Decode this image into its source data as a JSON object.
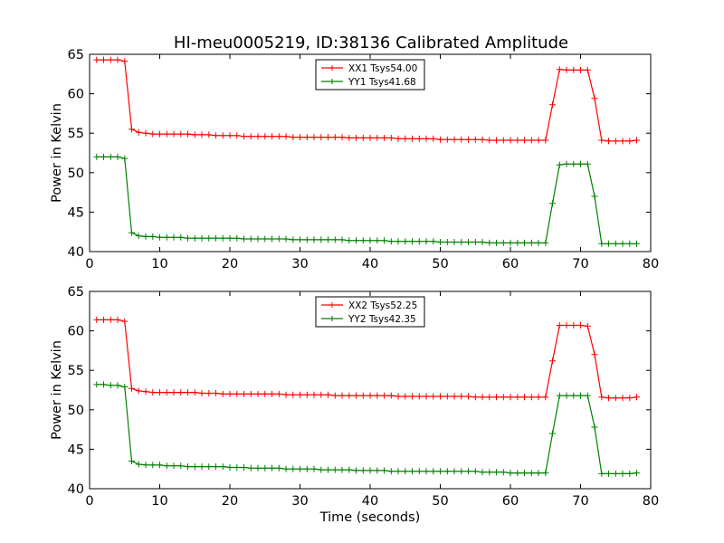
{
  "title": "HI-meu0005219, ID:38136 Calibrated Amplitude",
  "chart_data": [
    {
      "type": "line",
      "ylabel": "Power in Kelvin",
      "xlabel": "",
      "xlim": [
        0,
        80
      ],
      "ylim": [
        40,
        65
      ],
      "xticks": [
        0,
        10,
        20,
        30,
        40,
        50,
        60,
        70,
        80
      ],
      "yticks": [
        40,
        45,
        50,
        55,
        60,
        65
      ],
      "legend_position": "top-center",
      "series": [
        {
          "name": "XX1 Tsys54.00",
          "color": "#ff0000",
          "x": [
            1,
            2,
            3,
            4,
            5,
            6,
            7,
            8,
            9,
            10,
            11,
            12,
            13,
            14,
            15,
            16,
            17,
            18,
            19,
            20,
            21,
            22,
            23,
            24,
            25,
            26,
            27,
            28,
            29,
            30,
            31,
            32,
            33,
            34,
            35,
            36,
            37,
            38,
            39,
            40,
            41,
            42,
            43,
            44,
            45,
            46,
            47,
            48,
            49,
            50,
            51,
            52,
            53,
            54,
            55,
            56,
            57,
            58,
            59,
            60,
            61,
            62,
            63,
            64,
            65,
            66,
            67,
            68,
            69,
            70,
            71,
            72,
            73,
            74,
            75,
            76,
            77,
            78
          ],
          "y": [
            64.3,
            64.3,
            64.3,
            64.3,
            64.1,
            55.5,
            55.1,
            55.0,
            54.9,
            54.9,
            54.9,
            54.9,
            54.9,
            54.9,
            54.8,
            54.8,
            54.8,
            54.7,
            54.7,
            54.7,
            54.7,
            54.6,
            54.6,
            54.6,
            54.6,
            54.6,
            54.6,
            54.6,
            54.5,
            54.5,
            54.5,
            54.5,
            54.5,
            54.5,
            54.5,
            54.5,
            54.4,
            54.4,
            54.4,
            54.4,
            54.4,
            54.4,
            54.4,
            54.3,
            54.3,
            54.3,
            54.3,
            54.3,
            54.3,
            54.2,
            54.2,
            54.2,
            54.2,
            54.2,
            54.2,
            54.2,
            54.1,
            54.1,
            54.1,
            54.1,
            54.1,
            54.1,
            54.1,
            54.1,
            54.1,
            58.6,
            63.1,
            63.0,
            63.0,
            63.0,
            63.0,
            59.4,
            54.1,
            54.0,
            54.0,
            54.0,
            54.0,
            54.1
          ]
        },
        {
          "name": "YY1 Tsys41.68",
          "color": "#008000",
          "x": [
            1,
            2,
            3,
            4,
            5,
            6,
            7,
            8,
            9,
            10,
            11,
            12,
            13,
            14,
            15,
            16,
            17,
            18,
            19,
            20,
            21,
            22,
            23,
            24,
            25,
            26,
            27,
            28,
            29,
            30,
            31,
            32,
            33,
            34,
            35,
            36,
            37,
            38,
            39,
            40,
            41,
            42,
            43,
            44,
            45,
            46,
            47,
            48,
            49,
            50,
            51,
            52,
            53,
            54,
            55,
            56,
            57,
            58,
            59,
            60,
            61,
            62,
            63,
            64,
            65,
            66,
            67,
            68,
            69,
            70,
            71,
            72,
            73,
            74,
            75,
            76,
            77,
            78
          ],
          "y": [
            52.0,
            52.0,
            52.0,
            52.0,
            51.8,
            42.4,
            42.0,
            41.9,
            41.9,
            41.8,
            41.8,
            41.8,
            41.8,
            41.7,
            41.7,
            41.7,
            41.7,
            41.7,
            41.7,
            41.7,
            41.7,
            41.6,
            41.6,
            41.6,
            41.6,
            41.6,
            41.6,
            41.6,
            41.5,
            41.5,
            41.5,
            41.5,
            41.5,
            41.5,
            41.5,
            41.5,
            41.4,
            41.4,
            41.4,
            41.4,
            41.4,
            41.4,
            41.3,
            41.3,
            41.3,
            41.3,
            41.3,
            41.3,
            41.3,
            41.2,
            41.2,
            41.2,
            41.2,
            41.2,
            41.2,
            41.2,
            41.1,
            41.1,
            41.1,
            41.1,
            41.1,
            41.1,
            41.1,
            41.1,
            41.1,
            46.1,
            51.0,
            51.1,
            51.1,
            51.1,
            51.1,
            47.0,
            41.0,
            41.0,
            41.0,
            41.0,
            41.0,
            41.0
          ]
        }
      ]
    },
    {
      "type": "line",
      "ylabel": "Power in Kelvin",
      "xlabel": "Time (seconds)",
      "xlim": [
        0,
        80
      ],
      "ylim": [
        40,
        65
      ],
      "xticks": [
        0,
        10,
        20,
        30,
        40,
        50,
        60,
        70,
        80
      ],
      "yticks": [
        40,
        45,
        50,
        55,
        60,
        65
      ],
      "legend_position": "top-center",
      "series": [
        {
          "name": "XX2 Tsys52.25",
          "color": "#ff0000",
          "x": [
            1,
            2,
            3,
            4,
            5,
            6,
            7,
            8,
            9,
            10,
            11,
            12,
            13,
            14,
            15,
            16,
            17,
            18,
            19,
            20,
            21,
            22,
            23,
            24,
            25,
            26,
            27,
            28,
            29,
            30,
            31,
            32,
            33,
            34,
            35,
            36,
            37,
            38,
            39,
            40,
            41,
            42,
            43,
            44,
            45,
            46,
            47,
            48,
            49,
            50,
            51,
            52,
            53,
            54,
            55,
            56,
            57,
            58,
            59,
            60,
            61,
            62,
            63,
            64,
            65,
            66,
            67,
            68,
            69,
            70,
            71,
            72,
            73,
            74,
            75,
            76,
            77,
            78
          ],
          "y": [
            61.4,
            61.4,
            61.4,
            61.4,
            61.2,
            52.7,
            52.4,
            52.3,
            52.2,
            52.2,
            52.2,
            52.2,
            52.2,
            52.2,
            52.2,
            52.1,
            52.1,
            52.1,
            52.0,
            52.0,
            52.0,
            52.0,
            52.0,
            52.0,
            52.0,
            52.0,
            52.0,
            51.9,
            51.9,
            51.9,
            51.9,
            51.9,
            51.9,
            51.9,
            51.8,
            51.8,
            51.8,
            51.8,
            51.8,
            51.8,
            51.8,
            51.8,
            51.8,
            51.7,
            51.7,
            51.7,
            51.7,
            51.7,
            51.7,
            51.7,
            51.7,
            51.7,
            51.7,
            51.7,
            51.6,
            51.6,
            51.6,
            51.6,
            51.6,
            51.6,
            51.6,
            51.6,
            51.6,
            51.6,
            51.6,
            56.2,
            60.7,
            60.7,
            60.7,
            60.7,
            60.6,
            57.0,
            51.6,
            51.5,
            51.5,
            51.5,
            51.5,
            51.6
          ]
        },
        {
          "name": "YY2 Tsys42.35",
          "color": "#008000",
          "x": [
            1,
            2,
            3,
            4,
            5,
            6,
            7,
            8,
            9,
            10,
            11,
            12,
            13,
            14,
            15,
            16,
            17,
            18,
            19,
            20,
            21,
            22,
            23,
            24,
            25,
            26,
            27,
            28,
            29,
            30,
            31,
            32,
            33,
            34,
            35,
            36,
            37,
            38,
            39,
            40,
            41,
            42,
            43,
            44,
            45,
            46,
            47,
            48,
            49,
            50,
            51,
            52,
            53,
            54,
            55,
            56,
            57,
            58,
            59,
            60,
            61,
            62,
            63,
            64,
            65,
            66,
            67,
            68,
            69,
            70,
            71,
            72,
            73,
            74,
            75,
            76,
            77,
            78
          ],
          "y": [
            53.2,
            53.2,
            53.1,
            53.1,
            52.9,
            43.5,
            43.1,
            43.0,
            43.0,
            43.0,
            42.9,
            42.9,
            42.9,
            42.8,
            42.8,
            42.8,
            42.8,
            42.8,
            42.8,
            42.7,
            42.7,
            42.7,
            42.6,
            42.6,
            42.6,
            42.6,
            42.6,
            42.5,
            42.5,
            42.5,
            42.5,
            42.5,
            42.4,
            42.4,
            42.4,
            42.4,
            42.4,
            42.3,
            42.3,
            42.3,
            42.3,
            42.3,
            42.2,
            42.2,
            42.2,
            42.2,
            42.2,
            42.2,
            42.2,
            42.2,
            42.2,
            42.2,
            42.2,
            42.2,
            42.2,
            42.1,
            42.1,
            42.1,
            42.1,
            42.0,
            42.0,
            42.0,
            42.0,
            42.0,
            42.0,
            47.0,
            51.8,
            51.8,
            51.8,
            51.8,
            51.8,
            47.8,
            41.9,
            41.9,
            41.9,
            41.9,
            41.9,
            42.0
          ]
        }
      ]
    }
  ]
}
